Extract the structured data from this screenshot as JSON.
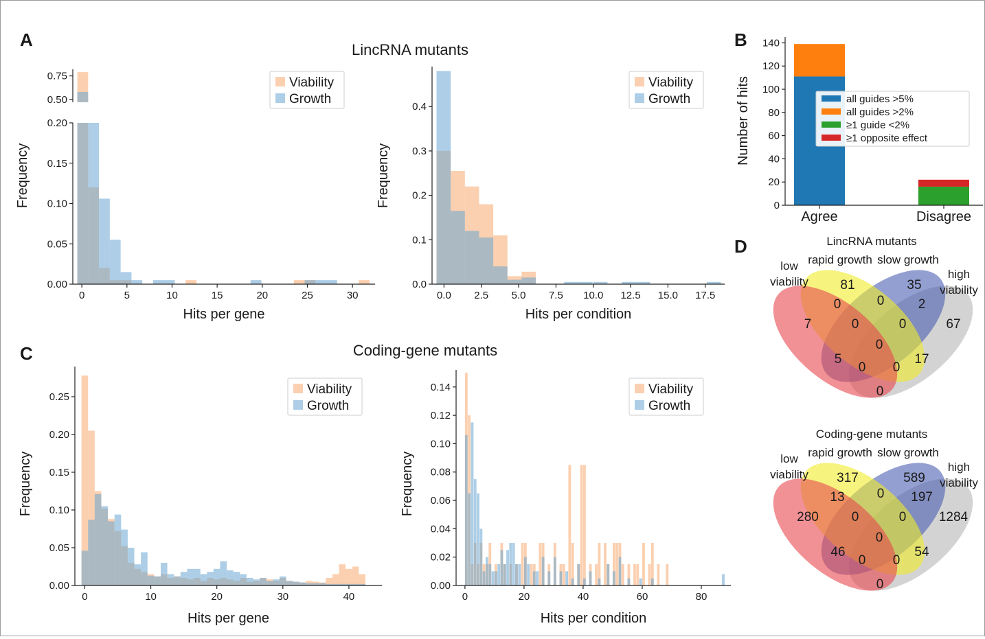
{
  "panels": {
    "A": "A",
    "B": "B",
    "C": "C",
    "D": "D"
  },
  "titles": {
    "lincrna": "LincRNA mutants",
    "coding": "Coding-gene mutants"
  },
  "colors": {
    "viability": "#f7a970",
    "growth": "#6aa6d2",
    "b_all5": "#1f77b4",
    "b_all2": "#ff7f0e",
    "b_guide": "#2ca02c",
    "b_opp": "#d62728",
    "venn_low": "#e8474f",
    "venn_rapid": "#f0ed2a",
    "venn_slow": "#4b5fb0",
    "venn_high": "#b5b5b5"
  },
  "legend_hist": {
    "viability": "Viability",
    "growth": "Growth"
  },
  "chart_data": [
    {
      "id": "A1",
      "type": "bar",
      "xlabel": "Hits per gene",
      "ylabel": "Frequency",
      "broken_axis": true,
      "xlim": [
        -1,
        32.5
      ],
      "xticks": [
        0,
        5,
        10,
        15,
        20,
        25,
        30
      ],
      "upper_ylim": [
        0.47,
        0.82
      ],
      "upper_yticks": [
        {
          "v": 0.5,
          "l": "0.50"
        },
        {
          "v": 0.75,
          "l": "0.75"
        }
      ],
      "lower_ylim": [
        0,
        0.2
      ],
      "lower_yticks": [
        {
          "v": 0,
          "l": "0.00"
        },
        {
          "v": 0.05,
          "l": "0.05"
        },
        {
          "v": 0.1,
          "l": "0.10"
        },
        {
          "v": 0.15,
          "l": "0.15"
        },
        {
          "v": 0.2,
          "l": "0.20"
        }
      ],
      "bin_width": 1.2,
      "series": [
        {
          "name": "Viability",
          "bins": [
            -0.5,
            0.7,
            1.9,
            3.1,
            4.3,
            11.5,
            23.5,
            24.7,
            30.7
          ],
          "values": [
            0.79,
            0.12,
            0.02,
            0.005,
            0.005,
            0.005,
            0.005,
            0.005,
            0.005
          ]
        },
        {
          "name": "Growth",
          "bins": [
            -0.5,
            0.7,
            1.9,
            3.1,
            4.3,
            5.5,
            7.9,
            9.1,
            18.7,
            24.7,
            25.9,
            27.1
          ],
          "values": [
            0.58,
            0.2,
            0.106,
            0.055,
            0.015,
            0.005,
            0.005,
            0.005,
            0.005,
            0.005,
            0.005,
            0.005
          ]
        }
      ]
    },
    {
      "id": "A2",
      "type": "bar",
      "xlabel": "Hits per condition",
      "ylabel": "Frequency",
      "xlim": [
        -0.8,
        18.8
      ],
      "xticks": [
        {
          "v": 0,
          "l": "0.0"
        },
        {
          "v": 2.5,
          "l": "2.5"
        },
        {
          "v": 5,
          "l": "5.0"
        },
        {
          "v": 7.5,
          "l": "7.5"
        },
        {
          "v": 10,
          "l": "10.0"
        },
        {
          "v": 12.5,
          "l": "12.5"
        },
        {
          "v": 15,
          "l": "15.0"
        },
        {
          "v": 17.5,
          "l": "17.5"
        }
      ],
      "ylim": [
        0,
        0.49
      ],
      "yticks": [
        {
          "v": 0,
          "l": "0.0"
        },
        {
          "v": 0.1,
          "l": "0.1"
        },
        {
          "v": 0.2,
          "l": "0.2"
        },
        {
          "v": 0.3,
          "l": "0.3"
        },
        {
          "v": 0.4,
          "l": "0.4"
        }
      ],
      "bin_width": 0.95,
      "series": [
        {
          "name": "Viability",
          "bins": [
            -0.5,
            0.45,
            1.4,
            2.35,
            3.3,
            4.25,
            5.2
          ],
          "values": [
            0.3,
            0.255,
            0.22,
            0.18,
            0.11,
            0.018,
            0.028
          ]
        },
        {
          "name": "Growth",
          "bins": [
            -0.5,
            0.45,
            1.4,
            2.35,
            3.3,
            4.25,
            5.2,
            8.05,
            9.0,
            10.0,
            11.9,
            12.85,
            17.6
          ],
          "values": [
            0.48,
            0.165,
            0.12,
            0.105,
            0.04,
            0.01,
            0.015,
            0.005,
            0.005,
            0.005,
            0.005,
            0.005,
            0.005
          ]
        }
      ]
    },
    {
      "id": "B",
      "type": "bar",
      "ylabel": "Number of hits",
      "categories": [
        "Agree",
        "Disagree"
      ],
      "ylim": [
        0,
        145
      ],
      "yticks": [
        0,
        20,
        40,
        60,
        80,
        100,
        120,
        140
      ],
      "series": [
        {
          "name": "all guides >5%",
          "values": [
            111,
            0
          ]
        },
        {
          "name": "all guides >2%",
          "values": [
            28,
            0
          ]
        },
        {
          "name": "≥1 guide <2%",
          "values": [
            0,
            16
          ]
        },
        {
          "name": "≥1 opposite effect",
          "values": [
            0,
            6
          ]
        }
      ]
    },
    {
      "id": "C1",
      "type": "bar",
      "xlabel": "Hits per gene",
      "ylabel": "Frequency",
      "xlim": [
        -1.5,
        45
      ],
      "xticks": [
        0,
        10,
        20,
        30,
        40
      ],
      "ylim": [
        0,
        0.29
      ],
      "yticks": [
        {
          "v": 0,
          "l": "0.00"
        },
        {
          "v": 0.05,
          "l": "0.05"
        },
        {
          "v": 0.1,
          "l": "0.10"
        },
        {
          "v": 0.15,
          "l": "0.15"
        },
        {
          "v": 0.2,
          "l": "0.20"
        },
        {
          "v": 0.25,
          "l": "0.25"
        }
      ],
      "bin_width": 1,
      "start": -0.5,
      "series": [
        {
          "name": "Viability",
          "values": [
            0.278,
            0.205,
            0.125,
            0.102,
            0.088,
            0.072,
            0.052,
            0.03,
            0.022,
            0.018,
            0.015,
            0.012,
            0.015,
            0.01,
            0.012,
            0.01,
            0.008,
            0.01,
            0.006,
            0.01,
            0.008,
            0.01,
            0.008,
            0.006,
            0.01,
            0.005,
            0.006,
            0.01,
            0.008,
            0.006,
            0.01,
            0.006,
            0.005,
            0.004,
            0.006,
            0.005,
            0.004,
            0.01,
            0.015,
            0.028,
            0.022,
            0.025,
            0.015
          ]
        },
        {
          "name": "Growth",
          "values": [
            0.046,
            0.087,
            0.121,
            0.105,
            0.085,
            0.094,
            0.074,
            0.05,
            0.028,
            0.044,
            0.013,
            0.012,
            0.03,
            0.015,
            0.012,
            0.018,
            0.022,
            0.022,
            0.015,
            0.018,
            0.022,
            0.032,
            0.02,
            0.018,
            0.015,
            0.01,
            0.008,
            0.01,
            0.006,
            0.008,
            0.012,
            0.006,
            0.005,
            0.004,
            0.003,
            0.003,
            0.003,
            0.002,
            0.002,
            0.002,
            0.002,
            0.002,
            0.002
          ]
        }
      ]
    },
    {
      "id": "C2",
      "type": "bar",
      "xlabel": "Hits per condition",
      "ylabel": "Frequency",
      "xlim": [
        -3,
        90
      ],
      "xticks": [
        0,
        20,
        40,
        60,
        80
      ],
      "ylim": [
        0,
        0.152
      ],
      "yticks": [
        {
          "v": 0,
          "l": "0.00"
        },
        {
          "v": 0.02,
          "l": "0.02"
        },
        {
          "v": 0.04,
          "l": "0.04"
        },
        {
          "v": 0.06,
          "l": "0.06"
        },
        {
          "v": 0.08,
          "l": "0.08"
        },
        {
          "v": 0.1,
          "l": "0.10"
        },
        {
          "v": 0.12,
          "l": "0.12"
        },
        {
          "v": 0.14,
          "l": "0.14"
        }
      ],
      "bin_width": 0.9,
      "series": [
        {
          "name": "Viability",
          "bins": [
            0,
            1,
            2,
            3,
            4,
            5,
            6,
            7,
            8,
            10,
            12,
            13,
            15,
            17,
            19,
            20,
            22,
            23,
            25,
            26,
            28,
            30,
            32,
            33,
            35,
            36,
            38,
            39,
            40,
            42,
            44,
            45,
            47,
            48,
            50,
            51,
            52,
            53,
            55,
            57,
            58,
            60,
            62,
            63,
            65,
            68
          ],
          "values": [
            0.15,
            0.12,
            0.015,
            0.03,
            0.015,
            0.03,
            0.015,
            0.015,
            0.03,
            0.015,
            0.03,
            0.015,
            0.015,
            0.015,
            0.03,
            0.03,
            0.015,
            0.015,
            0.03,
            0.03,
            0.015,
            0.03,
            0.015,
            0.015,
            0.085,
            0.03,
            0.015,
            0.085,
            0.085,
            0.015,
            0.015,
            0.03,
            0.03,
            0.015,
            0.03,
            0.03,
            0.03,
            0.015,
            0.015,
            0.015,
            0.015,
            0.03,
            0.015,
            0.03,
            0.015,
            0.015
          ]
        },
        {
          "name": "Growth",
          "bins": [
            0,
            1,
            2,
            3,
            4,
            5,
            6,
            7,
            8,
            9,
            10,
            11,
            12,
            13,
            14,
            15,
            16,
            17,
            18,
            20,
            21,
            23,
            24,
            26,
            28,
            30,
            32,
            34,
            36,
            38,
            40,
            42,
            45,
            48,
            50,
            52,
            55,
            59,
            63,
            87
          ],
          "values": [
            0.106,
            0.065,
            0.115,
            0.075,
            0.065,
            0.04,
            0.01,
            0.02,
            0.015,
            0.01,
            0.01,
            0.015,
            0.025,
            0.015,
            0.025,
            0.03,
            0.03,
            0.015,
            0.015,
            0.02,
            0.015,
            0.01,
            0.01,
            0.02,
            0.01,
            0.02,
            0.01,
            0.01,
            0.005,
            0.015,
            0.005,
            0.01,
            0.005,
            0.015,
            0.01,
            0.02,
            0.005,
            0.005,
            0.005,
            0.008
          ]
        }
      ]
    }
  ],
  "legend_b": [
    "all guides >5%",
    "all guides >2%",
    "≥1 guide <2%",
    "≥1 opposite effect"
  ],
  "venn": [
    {
      "title": "LincRNA mutants",
      "labels": {
        "low": [
          "low",
          "viability"
        ],
        "rapid": "rapid growth",
        "slow": "slow growth",
        "high": [
          "high",
          "viability"
        ]
      },
      "nums": [
        "7",
        "81",
        "35",
        "67",
        "0",
        "0",
        "2",
        "0",
        "0",
        "0",
        "5",
        "0",
        "0",
        "17",
        "0"
      ]
    },
    {
      "title": "Coding-gene mutants",
      "labels": {
        "low": [
          "low",
          "viability"
        ],
        "rapid": "rapid growth",
        "slow": "slow growth",
        "high": [
          "high",
          "viability"
        ]
      },
      "nums": [
        "280",
        "317",
        "589",
        "1284",
        "13",
        "0",
        "197",
        "0",
        "0",
        "0",
        "46",
        "0",
        "0",
        "54",
        "0"
      ]
    }
  ]
}
